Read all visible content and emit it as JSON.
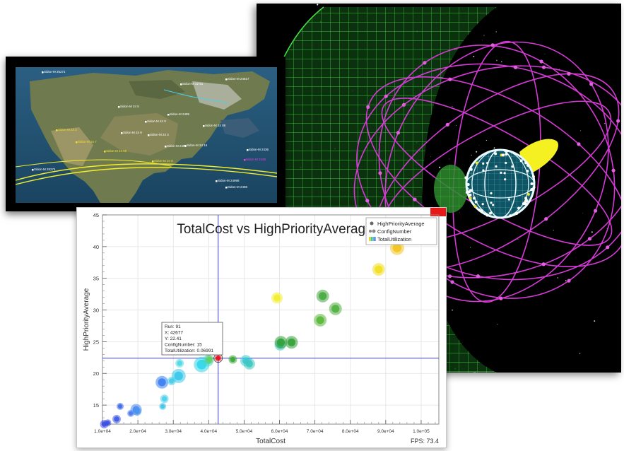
{
  "chart": {
    "title": "TotalCost vs HighPriorityAverage",
    "xlabel": "TotalCost",
    "ylabel": "HighPriorityAverage",
    "fps_label": "FPS: 73.4",
    "legend": [
      "HighPriorityAverage",
      "ConfigNumber",
      "TotalUtilization"
    ],
    "tooltip": [
      "Run: 91",
      "X: 42677",
      "Y: 22.41",
      "ConfigNumber: 15",
      "TotalUtilization: 0.06991"
    ]
  },
  "chart_data": {
    "type": "scatter",
    "title": "TotalCost vs HighPriorityAverage",
    "xlabel": "TotalCost",
    "ylabel": "HighPriorityAverage",
    "xlim": [
      10000,
      105000
    ],
    "ylim": [
      12,
      45
    ],
    "x_ticks": [
      10000,
      20000,
      30000,
      40000,
      50000,
      60000,
      70000,
      80000,
      90000,
      100000
    ],
    "x_tick_labels": [
      "1.0e+04",
      "2.0e+04",
      "3.0e+04",
      "4.0e+04",
      "5.0e+04",
      "6.0e+04",
      "7.0e+04",
      "8.0e+04",
      "9.0e+04",
      "1.0e+05"
    ],
    "y_ticks": [
      15,
      20,
      25,
      30,
      35,
      40,
      45
    ],
    "legend_position": "top-right",
    "grid": true,
    "crosshair": {
      "x": 42677,
      "y": 22.41
    },
    "points": [
      {
        "x": 10500,
        "y": 12.0,
        "size": 6,
        "color": "#3d4fe0"
      },
      {
        "x": 11500,
        "y": 12.2,
        "size": 5,
        "color": "#3d4fe0"
      },
      {
        "x": 14000,
        "y": 12.8,
        "size": 6,
        "color": "#3d5ae6"
      },
      {
        "x": 15000,
        "y": 14.8,
        "size": 5,
        "color": "#3e6ae8"
      },
      {
        "x": 18000,
        "y": 13.7,
        "size": 5,
        "color": "#4a78ea"
      },
      {
        "x": 19500,
        "y": 14.3,
        "size": 8,
        "color": "#4a88ee"
      },
      {
        "x": 19800,
        "y": 14.0,
        "size": 6,
        "color": "#4a95f0"
      },
      {
        "x": 26800,
        "y": 18.6,
        "size": 9,
        "color": "#3a7ff0"
      },
      {
        "x": 27000,
        "y": 14.8,
        "size": 5,
        "color": "#42c4e8"
      },
      {
        "x": 27500,
        "y": 16.0,
        "size": 6,
        "color": "#4ad0ec"
      },
      {
        "x": 29500,
        "y": 18.8,
        "size": 6,
        "color": "#46cde8"
      },
      {
        "x": 31500,
        "y": 19.6,
        "size": 10,
        "color": "#38c8ea"
      },
      {
        "x": 31800,
        "y": 21.6,
        "size": 6,
        "color": "#4fd8e6"
      },
      {
        "x": 38000,
        "y": 21.4,
        "size": 11,
        "color": "#30d6ea"
      },
      {
        "x": 39800,
        "y": 22.0,
        "size": 8,
        "color": "#48d6c8"
      },
      {
        "x": 40200,
        "y": 22.2,
        "size": 6,
        "color": "#64d060"
      },
      {
        "x": 41800,
        "y": 23.9,
        "size": 5,
        "color": "#4caa40"
      },
      {
        "x": 42677,
        "y": 22.41,
        "size": 5,
        "color": "#e8101a"
      },
      {
        "x": 46800,
        "y": 22.2,
        "size": 6,
        "color": "#3aa838"
      },
      {
        "x": 50500,
        "y": 22.0,
        "size": 8,
        "color": "#3dc8d0"
      },
      {
        "x": 51500,
        "y": 21.5,
        "size": 8,
        "color": "#3dc8c0"
      },
      {
        "x": 59300,
        "y": 31.9,
        "size": 8,
        "color": "#f2ee30"
      },
      {
        "x": 60200,
        "y": 24.5,
        "size": 8,
        "color": "#3fc8c4"
      },
      {
        "x": 60400,
        "y": 24.9,
        "size": 9,
        "color": "#34a03a"
      },
      {
        "x": 63400,
        "y": 24.9,
        "size": 9,
        "color": "#34a03a"
      },
      {
        "x": 71500,
        "y": 28.4,
        "size": 9,
        "color": "#5ab83a"
      },
      {
        "x": 72200,
        "y": 32.2,
        "size": 9,
        "color": "#45a840"
      },
      {
        "x": 75800,
        "y": 30.2,
        "size": 9,
        "color": "#50b040"
      },
      {
        "x": 88000,
        "y": 36.4,
        "size": 9,
        "color": "#f2de20"
      },
      {
        "x": 93200,
        "y": 39.8,
        "size": 10,
        "color": "#f2c420"
      }
    ]
  },
  "map": {
    "labels": [
      {
        "text": "Sidon-M 25271",
        "color": "#ffffff"
      },
      {
        "text": "Sidon-M 22 61",
        "color": "#ffffff"
      },
      {
        "text": "Sidon-M 24817",
        "color": "#ffffff"
      },
      {
        "text": "Sidon-M 24 5",
        "color": "#ffffff"
      },
      {
        "text": "Sidon-M 2485",
        "color": "#ffffff"
      },
      {
        "text": "Sidon-M 24 9",
        "color": "#ffffff"
      },
      {
        "text": "Sidon-M 22 2",
        "color": "#f2e030"
      },
      {
        "text": "Sidon-M 24 8",
        "color": "#ffffff"
      },
      {
        "text": "Sidon-M 24 89",
        "color": "#ffffff"
      },
      {
        "text": "Sidon-M 24 7",
        "color": "#f2e030"
      },
      {
        "text": "Sidon-M 24 3",
        "color": "#ffffff"
      },
      {
        "text": "Sidon-M 2491",
        "color": "#ffffff"
      },
      {
        "text": "Sidon-M 24  16",
        "color": "#ffffff"
      },
      {
        "text": "Sidon-M 24 56",
        "color": "#f2e030"
      },
      {
        "text": "Sidon-M 2436",
        "color": "#ffffff"
      },
      {
        "text": "Sidon-M 24 6",
        "color": "#f2e030"
      },
      {
        "text": "Sidon-M 2429",
        "color": "#f040e0"
      },
      {
        "text": "Sidon-M 25274",
        "color": "#ffffff"
      },
      {
        "text": "Sidon-M 24998",
        "color": "#ffffff"
      },
      {
        "text": "Sidon-M 2498",
        "color": "#ffffff"
      }
    ]
  }
}
